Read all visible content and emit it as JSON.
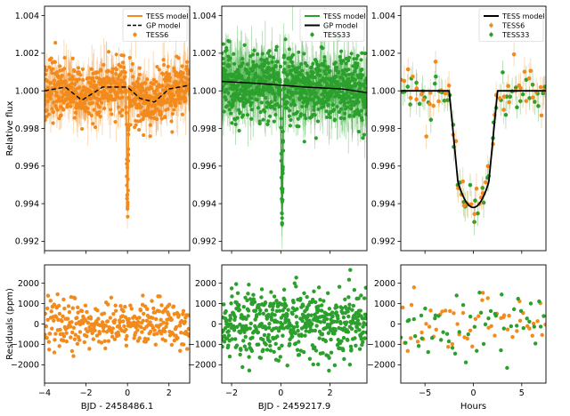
{
  "colors": {
    "tess6": "#f28a1c",
    "tess33": "#2ca02c",
    "gp": "#000000",
    "model": "#000000"
  },
  "chart_data": [
    {
      "id": "flux-tess6",
      "type": "scatter",
      "xlabel": "",
      "ylabel": "Relative flux",
      "xlim": [
        -4,
        3
      ],
      "ylim": [
        0.9915,
        1.0045
      ],
      "xticks": [
        -4,
        -2,
        0,
        2
      ],
      "xtick_labels": [
        "−4",
        "−2",
        "0",
        "2"
      ],
      "yticks": [
        0.992,
        0.994,
        0.996,
        0.998,
        1.0,
        1.002,
        1.004
      ],
      "ytick_labels": [
        "0.992",
        "0.994",
        "0.996",
        "0.998",
        "1.000",
        "1.002",
        "1.004"
      ],
      "show_xtick_labels": false,
      "legend": {
        "placement": "top-right",
        "entries": [
          {
            "label": "TESS model",
            "kind": "line",
            "color": "#f28a1c"
          },
          {
            "label": "GP model",
            "kind": "dashed",
            "color": "#000000"
          },
          {
            "label": "TESS6",
            "kind": "point",
            "color": "#f28a1c"
          }
        ]
      },
      "transit": {
        "t0": 0.0,
        "depth": 0.0061,
        "half_width": 0.07
      },
      "gp_trend": {
        "x": [
          -4,
          -3,
          -2.2,
          -1.2,
          -0.5,
          0,
          0.6,
          1.3,
          2.0,
          3.0
        ],
        "y": [
          1.0,
          1.0002,
          0.9995,
          1.0002,
          1.0002,
          1.0002,
          0.9996,
          0.9994,
          1.0001,
          1.0003
        ]
      },
      "noise_ppm": 700,
      "n_points": 700
    },
    {
      "id": "flux-tess33",
      "type": "scatter",
      "xlabel": "",
      "ylabel": "",
      "xlim": [
        -2.4,
        3.5
      ],
      "ylim": [
        0.9915,
        1.0045
      ],
      "xticks": [
        -2,
        0,
        2
      ],
      "xtick_labels": [
        "−2",
        "0",
        "2"
      ],
      "yticks": [
        0.992,
        0.994,
        0.996,
        0.998,
        1.0,
        1.002,
        1.004
      ],
      "ytick_labels": [
        "0.992",
        "0.994",
        "0.996",
        "0.998",
        "1.000",
        "1.002",
        "1.004"
      ],
      "show_xtick_labels": false,
      "legend": {
        "placement": "top-right",
        "entries": [
          {
            "label": "TESS model",
            "kind": "line",
            "color": "#2ca02c"
          },
          {
            "label": "GP model",
            "kind": "line",
            "color": "#000000"
          },
          {
            "label": "TESS33",
            "kind": "point",
            "color": "#2ca02c"
          }
        ]
      },
      "transit": {
        "t0": 0.05,
        "depth": 0.0068,
        "half_width": 0.06
      },
      "gp_trend": {
        "x": [
          -2.4,
          -1.0,
          0.0,
          1.0,
          2.5,
          3.5
        ],
        "y": [
          1.0005,
          1.0004,
          1.0003,
          1.0002,
          1.0001,
          0.9999
        ]
      },
      "noise_ppm": 900,
      "n_points": 900
    },
    {
      "id": "flux-phased",
      "type": "scatter",
      "xlabel": "",
      "ylabel": "",
      "xlim": [
        -7.5,
        7.5
      ],
      "ylim": [
        0.9915,
        1.0045
      ],
      "xticks": [
        -5,
        0,
        5
      ],
      "xtick_labels": [
        "−5",
        "0",
        "5"
      ],
      "yticks": [
        0.992,
        0.994,
        0.996,
        0.998,
        1.0,
        1.002,
        1.004
      ],
      "ytick_labels": [
        "0.992",
        "0.994",
        "0.996",
        "0.998",
        "1.000",
        "1.002",
        "1.004"
      ],
      "show_xtick_labels": false,
      "legend": {
        "placement": "top-right",
        "entries": [
          {
            "label": "TESS model",
            "kind": "line",
            "color": "#000000"
          },
          {
            "label": "TESS6",
            "kind": "point",
            "color": "#f28a1c"
          },
          {
            "label": "TESS33",
            "kind": "point",
            "color": "#2ca02c"
          }
        ]
      },
      "model": {
        "t1": 2.5,
        "t2": 1.6,
        "depth": 0.0062
      },
      "noise_ppm": 700,
      "n_points_each": 55
    },
    {
      "id": "resid-tess6",
      "type": "scatter",
      "xlabel": "BJD - 2458486.1",
      "ylabel": "Residuals (ppm)",
      "xlim": [
        -4,
        3
      ],
      "ylim": [
        -2900,
        2900
      ],
      "xticks": [
        -4,
        -2,
        0,
        2
      ],
      "xtick_labels": [
        "−4",
        "−2",
        "0",
        "2"
      ],
      "yticks": [
        -2000,
        -1000,
        0,
        1000,
        2000
      ],
      "ytick_labels": [
        "−2000",
        "−1000",
        "0",
        "1000",
        "2000"
      ],
      "show_xtick_labels": true,
      "color": "#f28a1c",
      "noise_ppm": 600,
      "n_points": 330
    },
    {
      "id": "resid-tess33",
      "type": "scatter",
      "xlabel": "BJD - 2459217.9",
      "ylabel": "",
      "xlim": [
        -2.4,
        3.5
      ],
      "ylim": [
        -2900,
        2900
      ],
      "xticks": [
        -2,
        0,
        2
      ],
      "xtick_labels": [
        "−2",
        "0",
        "2"
      ],
      "yticks": [
        -2000,
        -1000,
        0,
        1000,
        2000
      ],
      "ytick_labels": [
        "−2000",
        "−1000",
        "0",
        "1000",
        "2000"
      ],
      "show_xtick_labels": true,
      "color": "#2ca02c",
      "noise_ppm": 900,
      "n_points": 520
    },
    {
      "id": "resid-phased",
      "type": "scatter",
      "xlabel": "Hours",
      "ylabel": "",
      "xlim": [
        -7.5,
        7.5
      ],
      "ylim": [
        -2900,
        2900
      ],
      "xticks": [
        -5,
        0,
        5
      ],
      "xtick_labels": [
        "−5",
        "0",
        "5"
      ],
      "yticks": [
        -2000,
        -1000,
        0,
        1000,
        2000
      ],
      "ytick_labels": [
        "−2000",
        "−1000",
        "0",
        "1000",
        "2000"
      ],
      "show_xtick_labels": true,
      "series_colors": [
        "#f28a1c",
        "#2ca02c"
      ],
      "noise_ppm": 850,
      "n_points_each": 55
    }
  ]
}
